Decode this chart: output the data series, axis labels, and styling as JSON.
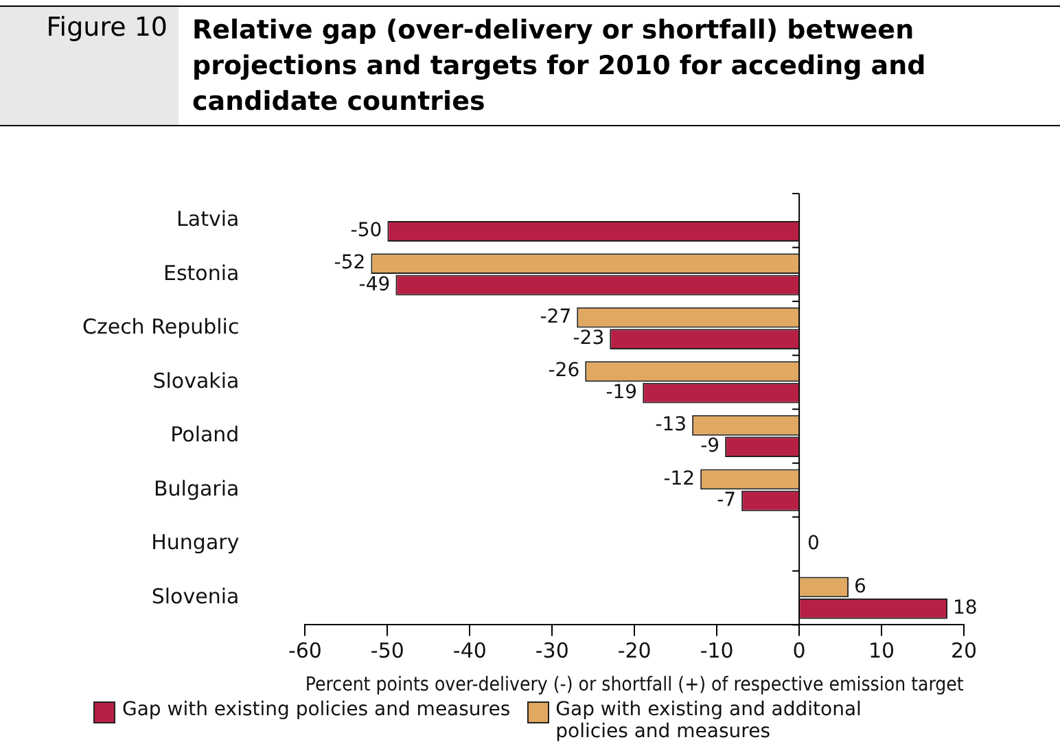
{
  "chart_data": {
    "type": "bar",
    "orientation": "horizontal",
    "title": "Relative gap (over-delivery or shortfall) between projections and targets for 2010 for acceding and candidate countries",
    "annotations": [
      "Figure 10"
    ],
    "xlabel": "Percent points over-delivery (-) or shortfall (+) of respective emission target",
    "categories": [
      "Latvia",
      "Estonia",
      "Czech Republic",
      "Slovakia",
      "Poland",
      "Bulgaria",
      "Hungary",
      "Slovenia"
    ],
    "series": [
      {
        "name": "Gap with existing policies and measures",
        "color": "#b81f45",
        "values": [
          -50,
          -49,
          -23,
          -19,
          -9,
          -7,
          0,
          18
        ],
        "value_labels": [
          "-50",
          "-49",
          "-23",
          "-19",
          "-9",
          "-7",
          "0",
          "18"
        ]
      },
      {
        "name": "Gap with existing and additonal policies and measures",
        "color": "#e0a860",
        "values": [
          null,
          -52,
          -27,
          -26,
          -13,
          -12,
          null,
          6
        ],
        "value_labels": [
          null,
          "-52",
          "-27",
          "-26",
          "-13",
          "-12",
          null,
          "6"
        ]
      }
    ],
    "xlim": [
      -60,
      20
    ],
    "xticks": [
      -60,
      -50,
      -40,
      -30,
      -20,
      -10,
      0,
      10,
      20
    ],
    "legend": "bottom"
  }
}
